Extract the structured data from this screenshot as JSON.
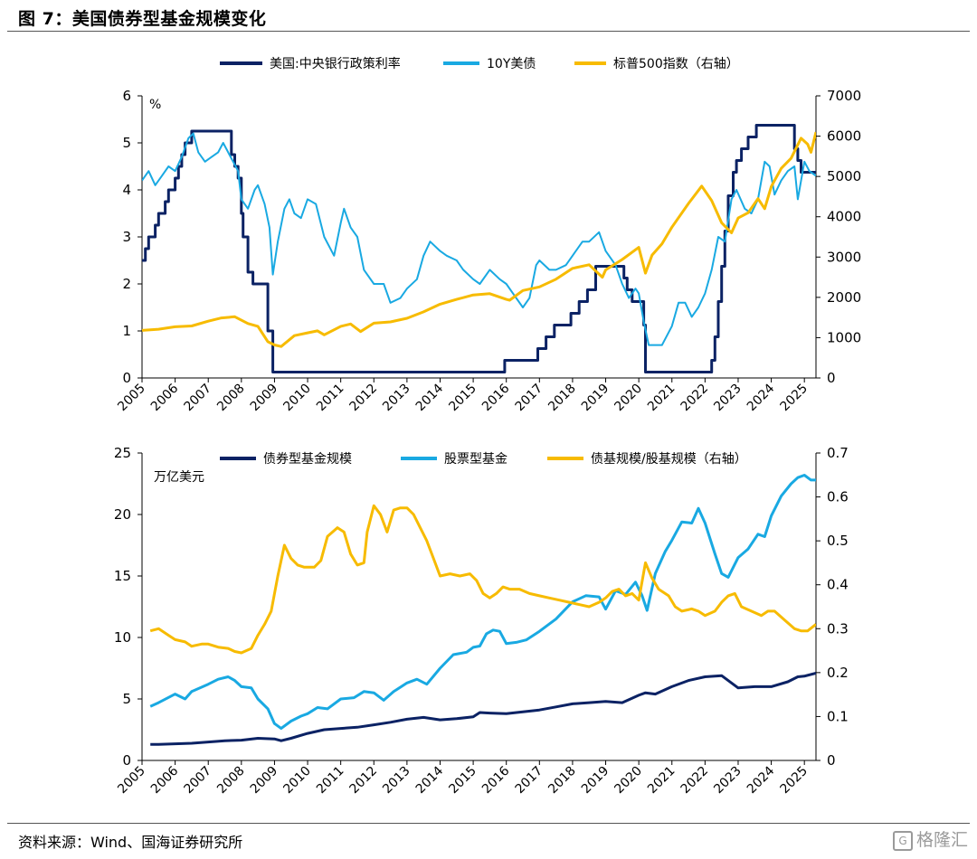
{
  "figure": {
    "title": "图 7：美国债券型基金规模变化",
    "source": "资料来源：Wind、国海证券研究所",
    "watermark": "格隆汇",
    "watermark_glyph": "G"
  },
  "colors": {
    "navy": "#0b2264",
    "sky": "#19a9e2",
    "gold": "#f7bb00",
    "axis": "#000000"
  },
  "chart_data": [
    {
      "type": "line",
      "title": "",
      "legend_position": "top",
      "grid": false,
      "x_ticks": [
        "2005",
        "2006",
        "2007",
        "2008",
        "2009",
        "2010",
        "2011",
        "2012",
        "2013",
        "2014",
        "2015",
        "2016",
        "2017",
        "2018",
        "2019",
        "2020",
        "2021",
        "2022",
        "2023",
        "2024",
        "2025"
      ],
      "xlim": [
        2005.0,
        2025.35
      ],
      "ylim": [
        0,
        6
      ],
      "y_ticks": [
        "0",
        "1",
        "2",
        "3",
        "4",
        "5",
        "6"
      ],
      "y2lim": [
        0,
        7000
      ],
      "y2_ticks": [
        "0",
        "1000",
        "2000",
        "3000",
        "4000",
        "5000",
        "6000",
        "7000"
      ],
      "ylabel": "%",
      "series": [
        {
          "name": "美国:中央银行政策利率",
          "color": "navy",
          "axis": "left",
          "step": true,
          "width": 3,
          "x": [
            2005.0,
            2005.1,
            2005.2,
            2005.3,
            2005.4,
            2005.5,
            2005.6,
            2005.7,
            2005.8,
            2005.9,
            2006.0,
            2006.1,
            2006.2,
            2006.3,
            2006.4,
            2006.5,
            2007.7,
            2007.8,
            2007.9,
            2008.0,
            2008.05,
            2008.2,
            2008.35,
            2008.5,
            2008.8,
            2008.95,
            2015.95,
            2016.95,
            2017.2,
            2017.45,
            2017.95,
            2018.2,
            2018.45,
            2018.7,
            2019.55,
            2019.65,
            2019.8,
            2020.15,
            2020.2,
            2022.2,
            2022.3,
            2022.4,
            2022.5,
            2022.6,
            2022.7,
            2022.85,
            2022.95,
            2023.1,
            2023.3,
            2023.55,
            2024.7,
            2024.8,
            2024.9,
            2025.35
          ],
          "y": [
            2.5,
            2.75,
            3.0,
            3.0,
            3.25,
            3.5,
            3.5,
            3.75,
            4.0,
            4.0,
            4.25,
            4.5,
            4.75,
            5.0,
            5.0,
            5.25,
            4.75,
            4.5,
            4.25,
            3.5,
            3.0,
            2.25,
            2.0,
            2.0,
            1.0,
            0.125,
            0.375,
            0.625,
            0.875,
            1.125,
            1.375,
            1.625,
            1.875,
            2.375,
            2.125,
            1.875,
            1.625,
            1.125,
            0.125,
            0.375,
            0.875,
            1.625,
            2.375,
            3.125,
            3.875,
            4.375,
            4.625,
            4.875,
            5.125,
            5.375,
            4.875,
            4.625,
            4.375,
            4.375
          ]
        },
        {
          "name": "10Y美债",
          "color": "sky",
          "axis": "left",
          "step": false,
          "width": 2,
          "x": [
            2005.0,
            2005.2,
            2005.4,
            2005.6,
            2005.8,
            2006.0,
            2006.2,
            2006.4,
            2006.55,
            2006.7,
            2006.9,
            2007.1,
            2007.3,
            2007.45,
            2007.6,
            2007.75,
            2007.9,
            2008.0,
            2008.2,
            2008.4,
            2008.5,
            2008.7,
            2008.85,
            2008.95,
            2009.1,
            2009.3,
            2009.45,
            2009.6,
            2009.8,
            2010.0,
            2010.25,
            2010.5,
            2010.8,
            2011.0,
            2011.1,
            2011.3,
            2011.5,
            2011.7,
            2012.0,
            2012.3,
            2012.5,
            2012.8,
            2013.0,
            2013.3,
            2013.5,
            2013.7,
            2014.0,
            2014.2,
            2014.5,
            2014.7,
            2015.0,
            2015.2,
            2015.5,
            2015.8,
            2016.0,
            2016.2,
            2016.5,
            2016.7,
            2016.9,
            2017.0,
            2017.3,
            2017.5,
            2017.8,
            2018.0,
            2018.3,
            2018.5,
            2018.8,
            2019.0,
            2019.3,
            2019.5,
            2019.7,
            2019.9,
            2020.0,
            2020.15,
            2020.3,
            2020.45,
            2020.7,
            2021.0,
            2021.2,
            2021.4,
            2021.6,
            2021.8,
            2022.0,
            2022.2,
            2022.4,
            2022.6,
            2022.8,
            2022.95,
            2023.2,
            2023.4,
            2023.6,
            2023.8,
            2023.95,
            2024.1,
            2024.3,
            2024.5,
            2024.7,
            2024.8,
            2025.0,
            2025.15,
            2025.35
          ],
          "y": [
            4.2,
            4.4,
            4.1,
            4.3,
            4.5,
            4.4,
            4.7,
            5.1,
            5.2,
            4.8,
            4.6,
            4.7,
            4.8,
            5.0,
            4.8,
            4.6,
            4.4,
            3.8,
            3.6,
            4.0,
            4.1,
            3.7,
            3.2,
            2.2,
            2.9,
            3.6,
            3.8,
            3.5,
            3.4,
            3.8,
            3.7,
            3.0,
            2.6,
            3.3,
            3.6,
            3.2,
            3.0,
            2.3,
            2.0,
            2.0,
            1.6,
            1.7,
            1.9,
            2.1,
            2.6,
            2.9,
            2.7,
            2.6,
            2.5,
            2.3,
            2.1,
            2.0,
            2.3,
            2.1,
            2.0,
            1.8,
            1.5,
            1.7,
            2.4,
            2.5,
            2.3,
            2.3,
            2.4,
            2.6,
            2.9,
            2.9,
            3.1,
            2.7,
            2.4,
            2.0,
            1.7,
            1.9,
            1.8,
            1.2,
            0.7,
            0.7,
            0.7,
            1.1,
            1.6,
            1.6,
            1.3,
            1.5,
            1.8,
            2.3,
            3.0,
            2.9,
            3.8,
            4.0,
            3.6,
            3.5,
            3.8,
            4.6,
            4.5,
            3.9,
            4.2,
            4.4,
            4.5,
            3.8,
            4.6,
            4.4,
            4.3
          ]
        },
        {
          "name": "标普500指数（右轴）",
          "color": "gold",
          "axis": "right",
          "step": false,
          "width": 3,
          "x": [
            2005.0,
            2005.5,
            2006.0,
            2006.5,
            2007.0,
            2007.4,
            2007.8,
            2008.2,
            2008.5,
            2008.8,
            2009.0,
            2009.2,
            2009.6,
            2010.0,
            2010.3,
            2010.5,
            2011.0,
            2011.3,
            2011.6,
            2012.0,
            2012.5,
            2013.0,
            2013.5,
            2014.0,
            2014.5,
            2015.0,
            2015.5,
            2016.0,
            2016.1,
            2016.5,
            2017.0,
            2017.5,
            2018.0,
            2018.5,
            2018.9,
            2019.0,
            2019.5,
            2020.0,
            2020.2,
            2020.4,
            2020.7,
            2021.0,
            2021.5,
            2021.9,
            2022.2,
            2022.5,
            2022.8,
            2023.0,
            2023.3,
            2023.6,
            2023.8,
            2024.0,
            2024.3,
            2024.6,
            2024.9,
            2025.1,
            2025.2,
            2025.35
          ],
          "y": [
            1180,
            1210,
            1270,
            1290,
            1410,
            1490,
            1520,
            1350,
            1280,
            900,
            820,
            780,
            1050,
            1120,
            1170,
            1070,
            1280,
            1340,
            1150,
            1360,
            1390,
            1480,
            1640,
            1830,
            1950,
            2060,
            2090,
            1950,
            1930,
            2170,
            2260,
            2450,
            2720,
            2810,
            2500,
            2680,
            2940,
            3240,
            2600,
            3050,
            3330,
            3740,
            4330,
            4760,
            4400,
            3850,
            3600,
            3970,
            4100,
            4450,
            4200,
            4750,
            5200,
            5450,
            5950,
            5800,
            5600,
            6100
          ]
        }
      ]
    },
    {
      "type": "line",
      "title": "",
      "legend_position": "top",
      "grid": false,
      "x_ticks": [
        "2005",
        "2006",
        "2007",
        "2008",
        "2009",
        "2010",
        "2011",
        "2012",
        "2013",
        "2014",
        "2015",
        "2016",
        "2017",
        "2018",
        "2019",
        "2020",
        "2021",
        "2022",
        "2023",
        "2024",
        "2025"
      ],
      "xlim": [
        2005.0,
        2025.35
      ],
      "ylim": [
        0,
        25
      ],
      "y_ticks": [
        "0",
        "5",
        "10",
        "15",
        "20",
        "25"
      ],
      "y2lim": [
        0,
        0.7
      ],
      "y2_ticks": [
        "0",
        "0.1",
        "0.2",
        "0.3",
        "0.4",
        "0.5",
        "0.6",
        "0.7"
      ],
      "ylabel": "万亿美元",
      "series": [
        {
          "name": "债券型基金规模",
          "color": "navy",
          "axis": "left",
          "step": false,
          "width": 3,
          "x": [
            2005.25,
            2005.5,
            2006.0,
            2006.5,
            2007.0,
            2007.5,
            2008.0,
            2008.5,
            2009.0,
            2009.2,
            2009.5,
            2010.0,
            2010.5,
            2011.0,
            2011.5,
            2012.0,
            2012.5,
            2013.0,
            2013.5,
            2014.0,
            2014.5,
            2015.0,
            2015.2,
            2015.5,
            2016.0,
            2016.5,
            2017.0,
            2017.5,
            2018.0,
            2018.5,
            2019.0,
            2019.5,
            2020.0,
            2020.2,
            2020.5,
            2021.0,
            2021.5,
            2022.0,
            2022.5,
            2023.0,
            2023.5,
            2024.0,
            2024.5,
            2024.8,
            2025.0,
            2025.35
          ],
          "y": [
            1.3,
            1.3,
            1.35,
            1.4,
            1.5,
            1.6,
            1.65,
            1.8,
            1.75,
            1.6,
            1.8,
            2.2,
            2.5,
            2.6,
            2.7,
            2.9,
            3.1,
            3.35,
            3.5,
            3.3,
            3.4,
            3.55,
            3.9,
            3.85,
            3.8,
            3.95,
            4.1,
            4.35,
            4.6,
            4.7,
            4.8,
            4.7,
            5.3,
            5.5,
            5.4,
            6.0,
            6.5,
            6.8,
            6.9,
            5.9,
            6.0,
            6.0,
            6.4,
            6.8,
            6.85,
            7.1
          ]
        },
        {
          "name": "股票型基金",
          "color": "sky",
          "axis": "left",
          "step": false,
          "width": 3,
          "x": [
            2005.25,
            2005.5,
            2006.0,
            2006.3,
            2006.5,
            2007.0,
            2007.3,
            2007.6,
            2007.8,
            2008.0,
            2008.3,
            2008.5,
            2008.8,
            2009.0,
            2009.2,
            2009.5,
            2009.8,
            2010.0,
            2010.3,
            2010.6,
            2011.0,
            2011.4,
            2011.7,
            2012.0,
            2012.3,
            2012.6,
            2013.0,
            2013.3,
            2013.6,
            2014.0,
            2014.4,
            2014.8,
            2015.0,
            2015.2,
            2015.4,
            2015.6,
            2015.8,
            2016.0,
            2016.3,
            2016.6,
            2017.0,
            2017.5,
            2018.0,
            2018.4,
            2018.8,
            2019.0,
            2019.3,
            2019.6,
            2019.9,
            2020.1,
            2020.25,
            2020.5,
            2020.8,
            2021.0,
            2021.3,
            2021.6,
            2021.8,
            2022.0,
            2022.3,
            2022.5,
            2022.7,
            2023.0,
            2023.3,
            2023.6,
            2023.8,
            2024.0,
            2024.3,
            2024.6,
            2024.8,
            2025.0,
            2025.2,
            2025.35
          ],
          "y": [
            4.4,
            4.7,
            5.4,
            5.0,
            5.6,
            6.2,
            6.6,
            6.8,
            6.5,
            6.0,
            5.9,
            5.0,
            4.2,
            3.0,
            2.6,
            3.2,
            3.6,
            3.8,
            4.3,
            4.2,
            5.0,
            5.1,
            5.6,
            5.5,
            4.9,
            5.6,
            6.3,
            6.6,
            6.2,
            7.5,
            8.6,
            8.8,
            9.2,
            9.3,
            10.3,
            10.6,
            10.5,
            9.5,
            9.6,
            9.8,
            10.5,
            11.5,
            12.9,
            13.4,
            13.3,
            12.3,
            13.8,
            13.5,
            14.5,
            13.4,
            12.2,
            15.2,
            17.0,
            17.9,
            19.4,
            19.3,
            20.5,
            19.3,
            16.8,
            15.2,
            14.9,
            16.5,
            17.2,
            18.4,
            18.2,
            19.9,
            21.5,
            22.5,
            23.0,
            23.2,
            22.8,
            22.8
          ]
        },
        {
          "name": "债基规模/股基规模（右轴）",
          "color": "gold",
          "axis": "right",
          "step": false,
          "width": 3,
          "x": [
            2005.25,
            2005.5,
            2005.8,
            2006.0,
            2006.3,
            2006.5,
            2006.8,
            2007.0,
            2007.3,
            2007.6,
            2007.8,
            2008.0,
            2008.3,
            2008.5,
            2008.7,
            2008.9,
            2009.1,
            2009.3,
            2009.5,
            2009.7,
            2009.9,
            2010.2,
            2010.4,
            2010.6,
            2010.9,
            2011.1,
            2011.3,
            2011.5,
            2011.7,
            2011.8,
            2012.0,
            2012.2,
            2012.4,
            2012.6,
            2012.8,
            2013.0,
            2013.2,
            2013.4,
            2013.6,
            2013.8,
            2014.0,
            2014.3,
            2014.6,
            2014.9,
            2015.1,
            2015.3,
            2015.5,
            2015.7,
            2015.9,
            2016.1,
            2016.4,
            2016.7,
            2017.0,
            2017.3,
            2017.6,
            2017.9,
            2018.2,
            2018.5,
            2018.8,
            2019.0,
            2019.2,
            2019.4,
            2019.6,
            2019.8,
            2020.0,
            2020.2,
            2020.4,
            2020.6,
            2020.9,
            2021.1,
            2021.3,
            2021.6,
            2021.8,
            2022.0,
            2022.3,
            2022.5,
            2022.7,
            2022.9,
            2023.1,
            2023.4,
            2023.7,
            2023.9,
            2024.1,
            2024.4,
            2024.7,
            2024.9,
            2025.1,
            2025.35
          ],
          "y": [
            0.295,
            0.3,
            0.285,
            0.275,
            0.27,
            0.26,
            0.265,
            0.265,
            0.258,
            0.255,
            0.248,
            0.245,
            0.255,
            0.285,
            0.31,
            0.34,
            0.42,
            0.49,
            0.46,
            0.445,
            0.44,
            0.44,
            0.455,
            0.51,
            0.53,
            0.52,
            0.47,
            0.445,
            0.45,
            0.52,
            0.58,
            0.56,
            0.52,
            0.57,
            0.575,
            0.575,
            0.56,
            0.53,
            0.5,
            0.46,
            0.42,
            0.425,
            0.42,
            0.425,
            0.41,
            0.38,
            0.37,
            0.38,
            0.395,
            0.39,
            0.39,
            0.38,
            0.375,
            0.37,
            0.365,
            0.36,
            0.355,
            0.35,
            0.36,
            0.37,
            0.385,
            0.39,
            0.375,
            0.38,
            0.365,
            0.45,
            0.415,
            0.39,
            0.375,
            0.35,
            0.34,
            0.345,
            0.34,
            0.33,
            0.34,
            0.36,
            0.375,
            0.38,
            0.35,
            0.34,
            0.33,
            0.34,
            0.34,
            0.32,
            0.3,
            0.295,
            0.295,
            0.31
          ]
        }
      ]
    }
  ]
}
